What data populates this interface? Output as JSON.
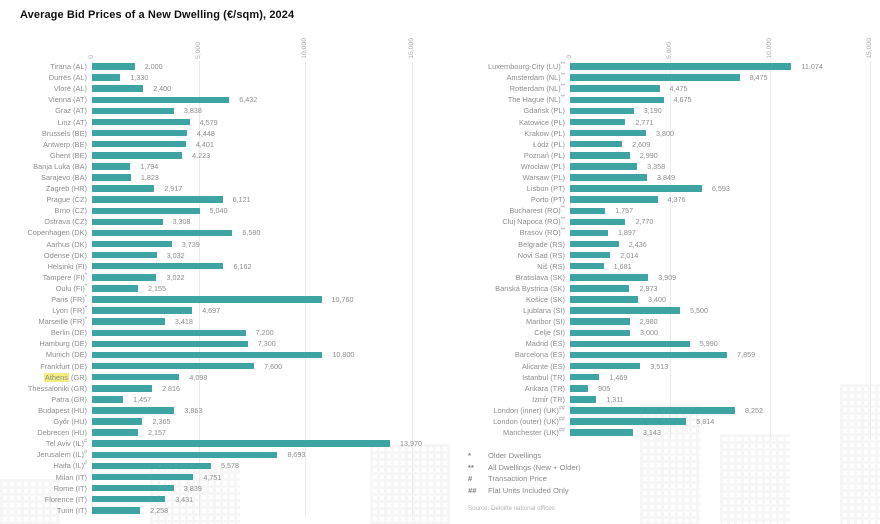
{
  "title": "Average Bid Prices of a New Dwelling (€/sqm), 2024",
  "axis": {
    "ticks": [
      "0",
      "5,000",
      "10,000",
      "15,000"
    ],
    "positions": [
      0,
      33.333,
      66.667,
      100
    ],
    "max": 15000
  },
  "colors": {
    "bar": "#3ea3a3",
    "highlight": "#f4ee7e",
    "grid": "#ebebeb"
  },
  "legend": {
    "items": [
      {
        "symbol": "*",
        "label": "Older Dwellings"
      },
      {
        "symbol": "**",
        "label": "All Dwellings (New + Older)"
      },
      {
        "symbol": "#",
        "label": "Transaction Price"
      },
      {
        "symbol": "##",
        "label": "Flat Units Included Only"
      }
    ]
  },
  "source": "Source: Deloitte national offices",
  "chart_data": [
    {
      "type": "bar",
      "orientation": "horizontal",
      "title": "Average Bid Prices of a New Dwelling (€/sqm), 2024 — panel 1",
      "xlim": [
        0,
        15000
      ],
      "x_ticks": [
        "0",
        "5,000",
        "10,000",
        "15,000"
      ],
      "grid": true,
      "highlighted_category": "Athens (GR)",
      "categories": [
        "Tirana (AL)",
        "Durrës (AL)",
        "Vlorë (AL)",
        "Vienna (AT)",
        "Graz (AT)",
        "Linz (AT)",
        "Brussels (BE)",
        "Antwerp (BE)",
        "Ghent (BE)",
        "Banja Luka (BA)",
        "Sarajevo (BA)",
        "Zagreb (HR)",
        "Prague (CZ)",
        "Brno (CZ)",
        "Ostrava (CZ)",
        "Copenhagen (DK)",
        "Aarhus (DK)",
        "Odense (DK)",
        "Helsinki (FI)",
        "Tampere (FI)*",
        "Oulu (FI)*",
        "Paris (FR)*",
        "Lyon (FR)*",
        "Marseille (FR)*",
        "Berlin (DE)",
        "Hamburg (DE)",
        "Munich (DE)",
        "Frankfurt (DE)",
        "Athens (GR)",
        "Thessaloniki (GR)",
        "Patra (GR)",
        "Budapest (HU)",
        "Győr (HU)",
        "Debrecen (HU)",
        "Tel Aviv (IL)#",
        "Jerusalem (IL)#",
        "Haifa (IL)#",
        "Milan (IT)",
        "Rome (IT)",
        "Florence (IT)",
        "Turin (IT)"
      ],
      "values": [
        2000,
        1330,
        2400,
        6432,
        3838,
        4579,
        4448,
        4401,
        4223,
        1794,
        1823,
        2917,
        6121,
        5040,
        3308,
        6580,
        3739,
        3032,
        6162,
        3022,
        2155,
        10760,
        4697,
        3418,
        7200,
        7300,
        10800,
        7600,
        4098,
        2816,
        1457,
        3863,
        2365,
        2157,
        13970,
        8693,
        5578,
        4751,
        3839,
        3431,
        2258
      ],
      "labels": [
        "2,000",
        "1,330",
        "2,400",
        "6,432",
        "3,838",
        "4,579",
        "4,448",
        "4,401",
        "4,223",
        "1,794",
        "1,823",
        "2,917",
        "6,121",
        "5,040",
        "3,308",
        "6,580",
        "3,739",
        "3,032",
        "6,162",
        "3,022",
        "2,155",
        "10,760",
        "4,697",
        "3,418",
        "7,200",
        "7,300",
        "10,800",
        "7,600",
        "4,098",
        "2 816",
        "1,457",
        "3,863",
        "2,365",
        "2,157",
        "13,970",
        "8,693",
        "5,578",
        "4,751",
        "3,839",
        "3,431",
        "2,258"
      ]
    },
    {
      "type": "bar",
      "orientation": "horizontal",
      "title": "Average Bid Prices of a New Dwelling (€/sqm), 2024 — panel 2",
      "xlim": [
        0,
        15000
      ],
      "x_ticks": [
        "0",
        "5,000",
        "10,000",
        "15,000"
      ],
      "grid": true,
      "highlighted_category": null,
      "categories": [
        "Luxembourg-City (LU)**",
        "Amsterdam (NL)**",
        "Rotterdam (NL)**",
        "The Hague (NL)**",
        "Gdańsk (PL)",
        "Katowice (PL)",
        "Krakow (PL)",
        "Łódź (PL)",
        "Poznań (PL)",
        "Wrocław (PL)",
        "Warsaw (PL)",
        "Lisbon (PT)",
        "Porto (PT)",
        "Bucharest (RO)**",
        "Cluj Napoca (RO)**",
        "Brasov (RO)**",
        "Belgrade (RS)",
        "Novi Sad (RS)",
        "Niš (RS)",
        "Bratislava (SK)",
        "Banská Bystrica (SK)",
        "Košice (SK)",
        "Ljublana (SI)",
        "Maribor (SI)",
        "Celje (SI)",
        "Madrid (ES)",
        "Barcelona (ES)",
        "Alicante (ES)",
        "Istanbul (TR)",
        "Ankara (TR)",
        "Izmir (TR)",
        "London (inner) (UK)##",
        "London (outer) (UK)##",
        "Manchester (UK)##"
      ],
      "values": [
        11074,
        8475,
        4475,
        4675,
        3190,
        2771,
        3800,
        2609,
        2990,
        3358,
        3849,
        6593,
        4376,
        1757,
        2770,
        1897,
        2436,
        2014,
        1681,
        3909,
        2973,
        3400,
        5500,
        2980,
        3000,
        5990,
        7859,
        3513,
        1469,
        905,
        1311,
        8252,
        5814,
        3143
      ],
      "labels": [
        "11,074",
        "8,475",
        "4,475",
        "4,675",
        "3,190",
        "2,771",
        "3,800",
        "2,609",
        "2,990",
        "3,358",
        "3,849",
        "6,593",
        "4,376",
        "1,757",
        "2,770",
        "1,897",
        "2,436",
        "2,014",
        "1,681",
        "3,909",
        "2,973",
        "3,400",
        "5,500",
        "2,980",
        "3,000",
        "5,990",
        "7,859",
        "3,513",
        "1,469",
        "905",
        "1,311",
        "8,252",
        "5,814",
        "3,143"
      ]
    }
  ]
}
